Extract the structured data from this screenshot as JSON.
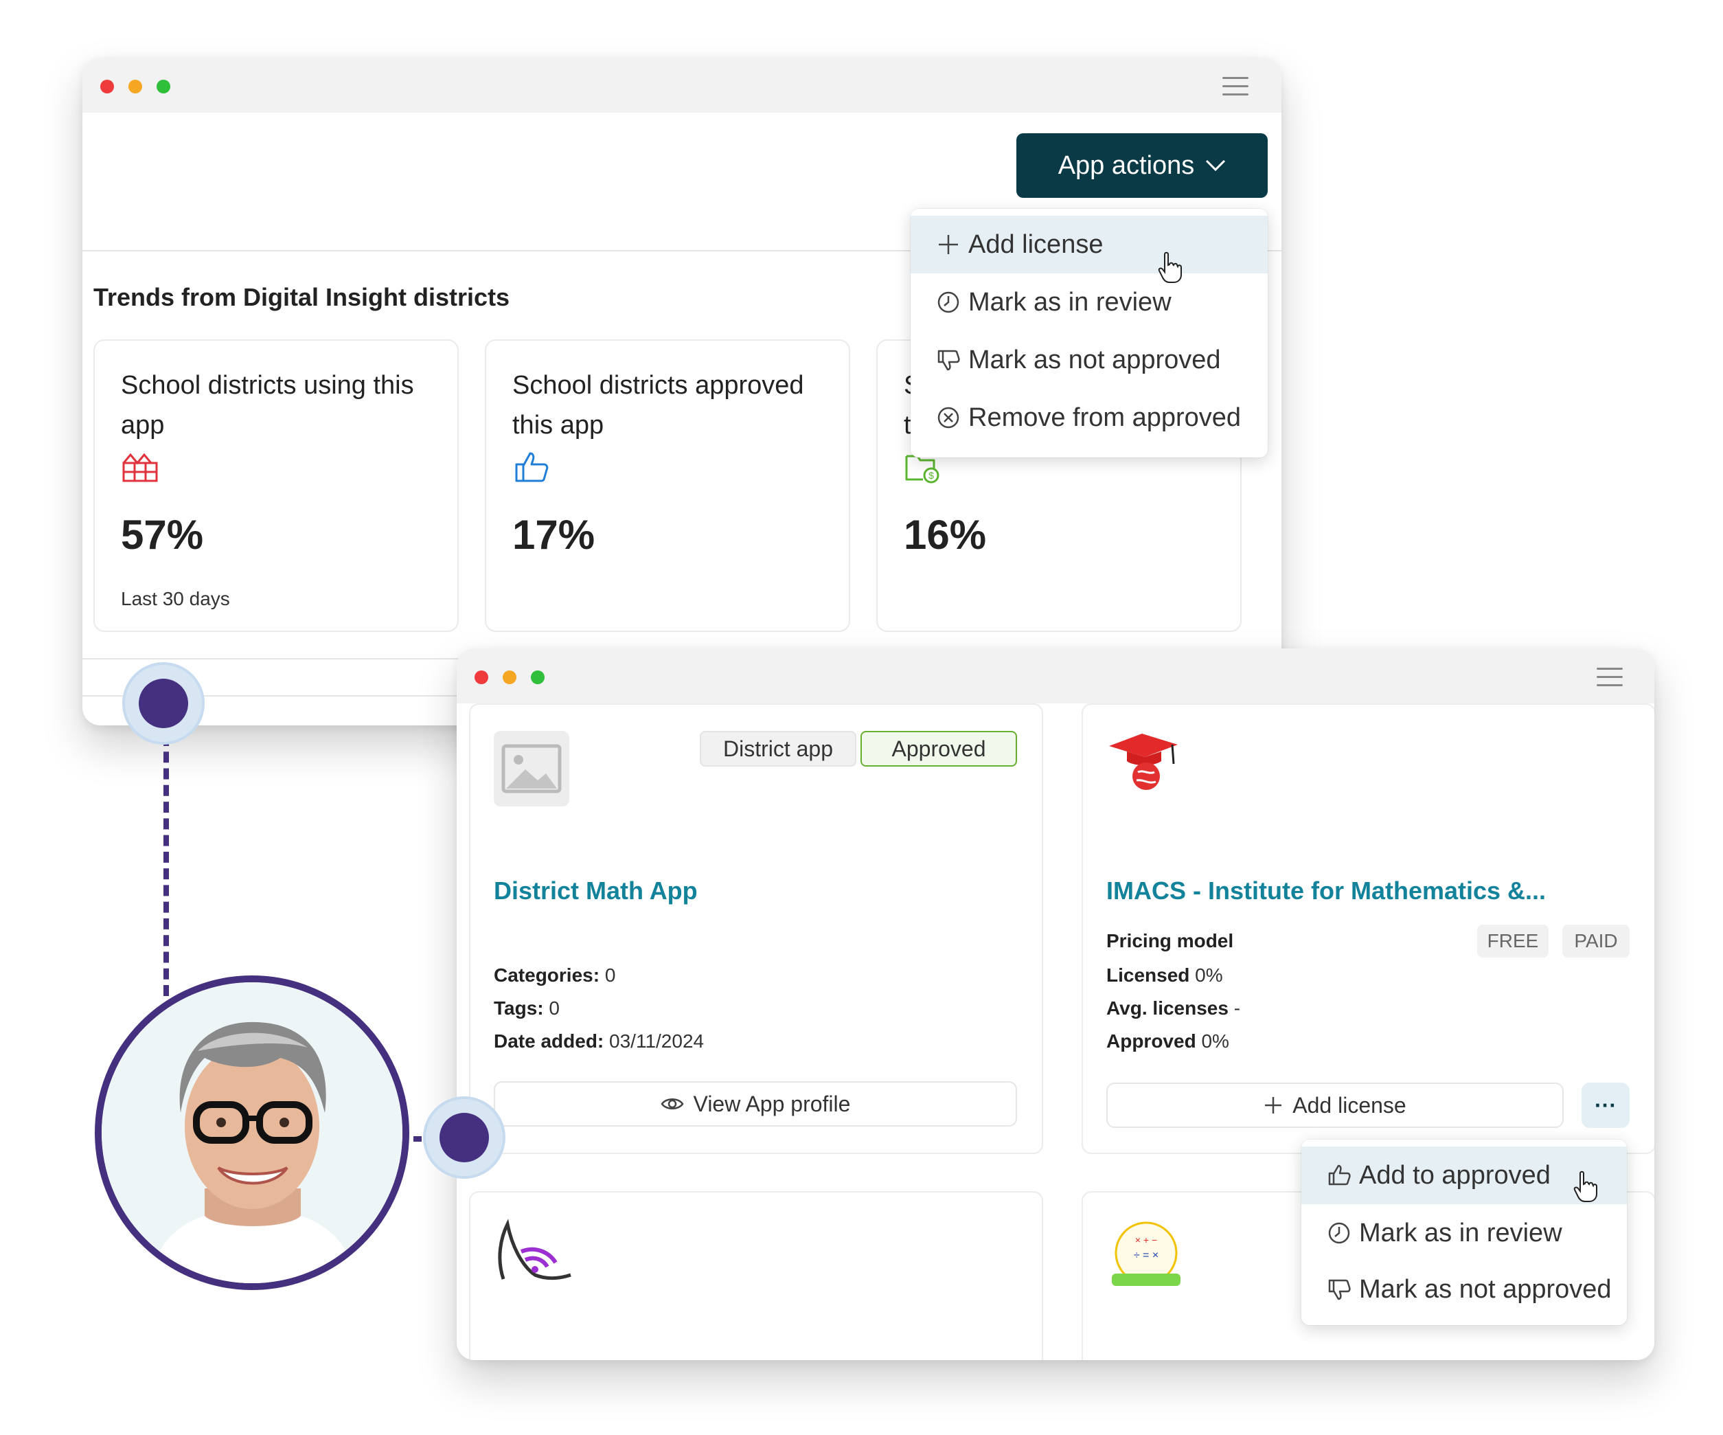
{
  "window1": {
    "app_actions_label": "App actions",
    "trends_title": "Trends from Digital Insight districts",
    "stats": [
      {
        "title": "School districts using this app",
        "value": "57%",
        "sub": "Last 30 days",
        "icon": "building-icon"
      },
      {
        "title": "School districts approved this app",
        "value": "17%",
        "icon": "thumbs-up-icon"
      },
      {
        "title_fragment": "S\nt",
        "value": "16%",
        "icon": "folder-dollar-icon"
      }
    ],
    "menu": [
      {
        "label": "Add license",
        "icon": "plus-icon"
      },
      {
        "label": "Mark as in review",
        "icon": "clock-icon"
      },
      {
        "label": "Mark as not approved",
        "icon": "thumbs-down-icon"
      },
      {
        "label": "Remove from approved",
        "icon": "circle-x-icon"
      }
    ]
  },
  "window2": {
    "card1": {
      "badges": [
        "District app",
        "Approved"
      ],
      "title": "District Math App",
      "categories_label": "Categories:",
      "categories_value": " 0",
      "tags_label": "Tags:",
      "tags_value": " 0",
      "date_label": "Date added:",
      "date_value": " 03/11/2024",
      "view_button": "View App profile"
    },
    "card2": {
      "title": "IMACS - Institute for Mathematics &...",
      "pricing_label": "Pricing model",
      "pricing_options": [
        "FREE",
        "PAID"
      ],
      "licensed_label": "Licensed",
      "licensed_value": " 0%",
      "avg_label": "Avg. licenses",
      "avg_value": " -",
      "approved_label": "Approved",
      "approved_value": " 0%",
      "add_license_button": "Add license",
      "more_button": "···"
    },
    "menu": [
      {
        "label": "Add to approved",
        "icon": "thumbs-up-icon"
      },
      {
        "label": "Mark as in review",
        "icon": "clock-icon"
      },
      {
        "label": "Mark as not approved",
        "icon": "thumbs-down-icon"
      }
    ]
  },
  "colors": {
    "accent_dark": "#0b3a47",
    "link_teal": "#13829b",
    "timeline_purple": "#45307f",
    "approved_green": "#68b030"
  }
}
